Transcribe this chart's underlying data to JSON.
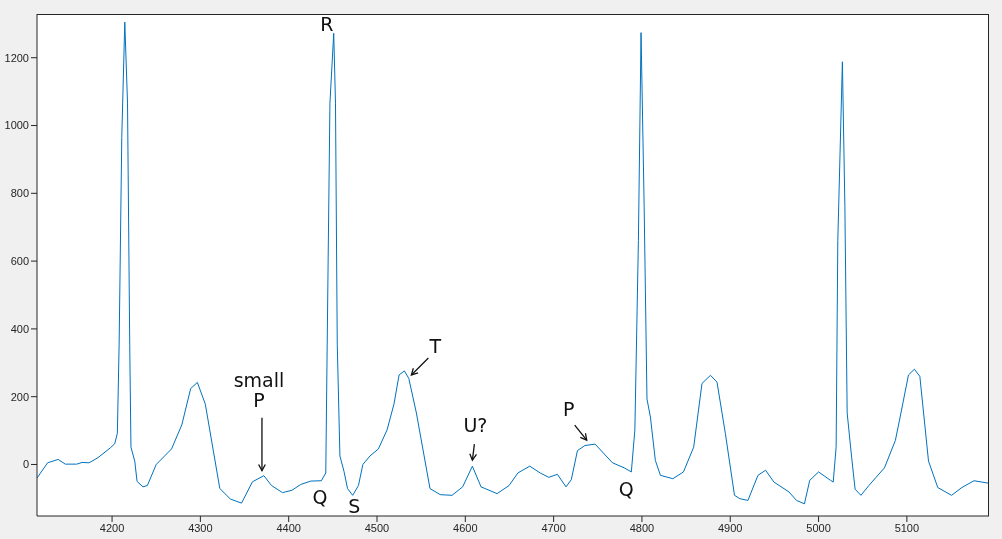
{
  "chart_data": {
    "type": "line",
    "x": [
      4115,
      4127,
      4139,
      4147,
      4160,
      4166,
      4174,
      4184,
      4198,
      4203,
      4206,
      4208,
      4211,
      4214.4,
      4217.5,
      4220,
      4221.4,
      4225.7,
      4228.3,
      4235,
      4240,
      4250,
      4267.4,
      4279,
      4289,
      4296.6,
      4305.6,
      4322,
      4334,
      4346.6,
      4359,
      4371.9,
      4380.5,
      4393,
      4403.8,
      4413.6,
      4425,
      4437,
      4442,
      4443.6,
      4446.7,
      4451,
      4453,
      4455,
      4458,
      4462.6,
      4466.6,
      4472.5,
      4479,
      4484,
      4492,
      4501.6,
      4511.4,
      4519.2,
      4525,
      4531,
      4536,
      4544.6,
      4560,
      4571.6,
      4585,
      4597,
      4608,
      4617.8,
      4636,
      4649.6,
      4659.5,
      4673,
      4684.8,
      4694.5,
      4704.3,
      4714,
      4720,
      4727,
      4735.5,
      4747,
      4766.6,
      4780,
      4788,
      4792,
      4796,
      4799,
      4802.5,
      4805.7,
      4809.6,
      4815.2,
      4820.9,
      4835,
      4847,
      4858.6,
      4868,
      4877.6,
      4885,
      4894.5,
      4904.8,
      4911,
      4920,
      4931.4,
      4940,
      4949.5,
      4966.5,
      4975,
      4984,
      4990,
      5000,
      5013.7,
      5016.6,
      5019.9,
      5021.8,
      5027,
      5029.8,
      5032.4,
      5037.5,
      5041.4,
      5048,
      5057,
      5074.6,
      5087,
      5093.3,
      5101.8,
      5108.5,
      5114.7,
      5124.5,
      5135,
      5150.6,
      5162.3,
      5176,
      5192
    ],
    "series": [
      {
        "color": "#0072bd",
        "values": [
          -40,
          5,
          15,
          1,
          1,
          6,
          5,
          20,
          49,
          61,
          92,
          355,
          965,
          1305,
          1066,
          355,
          51,
          10,
          -50,
          -66,
          -62,
          0,
          46,
          117,
          224,
          242,
          178,
          -71,
          -102,
          -114,
          -51,
          -33,
          -62,
          -83,
          -76,
          -59,
          -49,
          -48,
          -25,
          355,
          1066,
          1272,
          1066,
          355,
          25,
          -20,
          -71,
          -91,
          -62,
          0,
          25,
          46,
          102,
          178,
          264,
          276,
          254,
          152,
          -71,
          -89,
          -91,
          -66,
          -5,
          -66,
          -86,
          -62,
          -25,
          -5,
          -25,
          -38,
          -29,
          -66,
          -45,
          41,
          56,
          60,
          5,
          -10,
          -22,
          102,
          660,
          1274,
          762,
          193,
          140,
          12,
          -32,
          -42,
          -22,
          51,
          239,
          263,
          243,
          91,
          -91,
          -101,
          -106,
          -32,
          -17,
          -52,
          -81,
          -106,
          -116,
          -47,
          -22,
          -47,
          -52,
          51,
          660,
          1188,
          761,
          152,
          20,
          -73,
          -91,
          -62,
          -10,
          71,
          152,
          264,
          281,
          260,
          10,
          -68,
          -91,
          -68,
          -48,
          -55
        ]
      }
    ],
    "xlim": [
      4115,
      5193
    ],
    "ylim": [
      -152,
      1329
    ],
    "xticks": [
      4200,
      4300,
      4400,
      4500,
      4600,
      4700,
      4800,
      4900,
      5000,
      5100
    ],
    "yticks": [
      0,
      200,
      400,
      600,
      800,
      1000,
      1200
    ],
    "grid": false,
    "legend": false,
    "marker": "none",
    "line_style": "solid",
    "annotations": [
      {
        "text": "R",
        "x": 4451,
        "y": 1272
      },
      {
        "text": "Q",
        "x": 4441,
        "y": -48
      },
      {
        "text": "S",
        "x": 4472,
        "y": -91
      },
      {
        "text": "T",
        "x": 4531,
        "y": 276
      },
      {
        "text": "small P",
        "x": 4372,
        "y": -33
      },
      {
        "text": "U?",
        "x": 4608,
        "y": -5
      },
      {
        "text": "P",
        "x": 4742,
        "y": 60
      },
      {
        "text": "Q",
        "x": 4788,
        "y": -22
      }
    ]
  }
}
